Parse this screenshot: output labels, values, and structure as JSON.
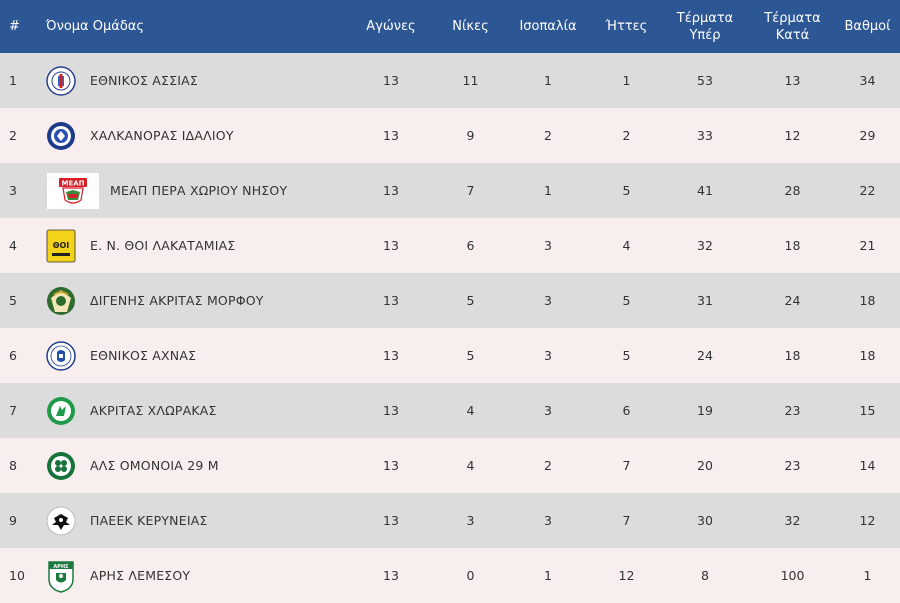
{
  "headers": {
    "pos": "#",
    "team": "Όνομα Ομάδας",
    "played": "Αγώνες",
    "wins": "Νίκες",
    "draws": "Ισοπαλία",
    "losses": "Ήττες",
    "gf_line1": "Τέρματα",
    "gf_line2": "Υπέρ",
    "ga_line1": "Τέρματα",
    "ga_line2": "Κατά",
    "points": "Βαθμοί"
  },
  "colors": {
    "header_bg": "#2d5694",
    "row_odd": "#dcdcdc",
    "row_even": "#f8eeee"
  },
  "rows": [
    {
      "pos": "1",
      "team": "ΕΘΝΙΚΟΣ ΑΣΣΙΑΣ",
      "logo_icon": "ethnikos-assias-logo-icon",
      "played": "13",
      "wins": "11",
      "draws": "1",
      "losses": "1",
      "gf": "53",
      "ga": "13",
      "points": "34"
    },
    {
      "pos": "2",
      "team": "ΧΑΛΚΑΝΟΡΑΣ ΙΔΑΛΙΟΥ",
      "logo_icon": "chalkanoras-logo-icon",
      "played": "13",
      "wins": "9",
      "draws": "2",
      "losses": "2",
      "gf": "33",
      "ga": "12",
      "points": "29"
    },
    {
      "pos": "3",
      "team": "ΜΕΑΠ ΠΕΡΑ ΧΩΡΙΟΥ ΝΗΣΟΥ",
      "logo_icon": "meap-logo-icon",
      "logo_text": "ΜΕΑΠ",
      "played": "13",
      "wins": "7",
      "draws": "1",
      "losses": "5",
      "gf": "41",
      "ga": "28",
      "points": "22"
    },
    {
      "pos": "4",
      "team": "Ε. Ν. ΘΟΙ ΛΑΚΑΤΑΜΙΑΣ",
      "logo_icon": "thoi-logo-icon",
      "logo_text": "ΘΟΙ",
      "played": "13",
      "wins": "6",
      "draws": "3",
      "losses": "4",
      "gf": "32",
      "ga": "18",
      "points": "21"
    },
    {
      "pos": "5",
      "team": "ΔΙΓΕΝΗΣ ΑΚΡΙΤΑΣ ΜΟΡΦΟΥ",
      "logo_icon": "digenis-logo-icon",
      "played": "13",
      "wins": "5",
      "draws": "3",
      "losses": "5",
      "gf": "31",
      "ga": "24",
      "points": "18"
    },
    {
      "pos": "6",
      "team": "ΕΘΝΙΚΟΣ ΑΧΝΑΣ",
      "logo_icon": "ethnikos-achnas-logo-icon",
      "played": "13",
      "wins": "5",
      "draws": "3",
      "losses": "5",
      "gf": "24",
      "ga": "18",
      "points": "18"
    },
    {
      "pos": "7",
      "team": "ΑΚΡΙΤΑΣ ΧΛΩΡΑΚΑΣ",
      "logo_icon": "akritas-logo-icon",
      "played": "13",
      "wins": "4",
      "draws": "3",
      "losses": "6",
      "gf": "19",
      "ga": "23",
      "points": "15"
    },
    {
      "pos": "8",
      "team": "ΑΛΣ ΟΜΟΝΟΙΑ 29 Μ",
      "logo_icon": "omonoia-logo-icon",
      "played": "13",
      "wins": "4",
      "draws": "2",
      "losses": "7",
      "gf": "20",
      "ga": "23",
      "points": "14"
    },
    {
      "pos": "9",
      "team": "ΠΑΕΕΚ ΚΕΡΥΝΕΙΑΣ",
      "logo_icon": "paeek-logo-icon",
      "played": "13",
      "wins": "3",
      "draws": "3",
      "losses": "7",
      "gf": "30",
      "ga": "32",
      "points": "12"
    },
    {
      "pos": "10",
      "team": "ΑΡΗΣ ΛΕΜΕΣΟΥ",
      "logo_icon": "aris-logo-icon",
      "logo_text": "ΑΡΗΣ",
      "played": "13",
      "wins": "0",
      "draws": "1",
      "losses": "12",
      "gf": "8",
      "ga": "100",
      "points": "1"
    }
  ]
}
